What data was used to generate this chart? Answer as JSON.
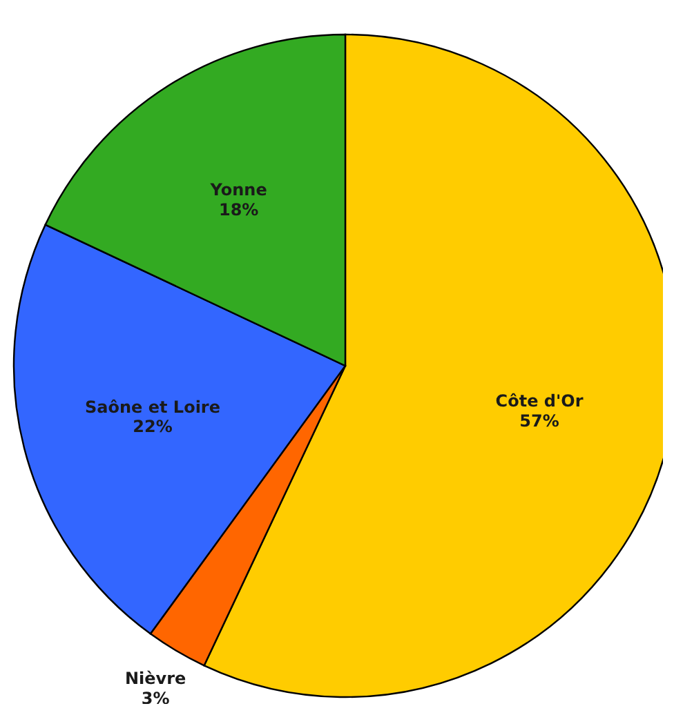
{
  "chart_data": {
    "type": "pie",
    "categories": [
      "Côte d'Or",
      "Nièvre",
      "Saône et Loire",
      "Yonne"
    ],
    "values": [
      57,
      3,
      22,
      18
    ],
    "value_labels": [
      "57%",
      "3%",
      "22%",
      "18%"
    ],
    "colors": [
      "#ffcc00",
      "#ff6600",
      "#3366ff",
      "#33aa22"
    ]
  }
}
